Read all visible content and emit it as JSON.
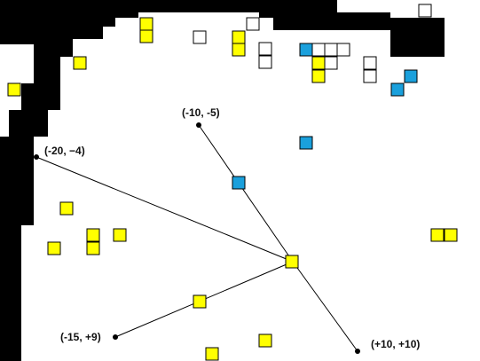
{
  "palette": {
    "wall": "#000000",
    "empty": "#ffffff",
    "yellow": "#ffff00",
    "blue": "#1aa0dc",
    "line": "#000000"
  },
  "relative_labels": [
    "(-10, -5)",
    "(-20, −4)",
    "(-15, +9)",
    "(+10, +10)"
  ],
  "tile_kinds": [
    "yellow",
    "blue",
    "empty"
  ]
}
